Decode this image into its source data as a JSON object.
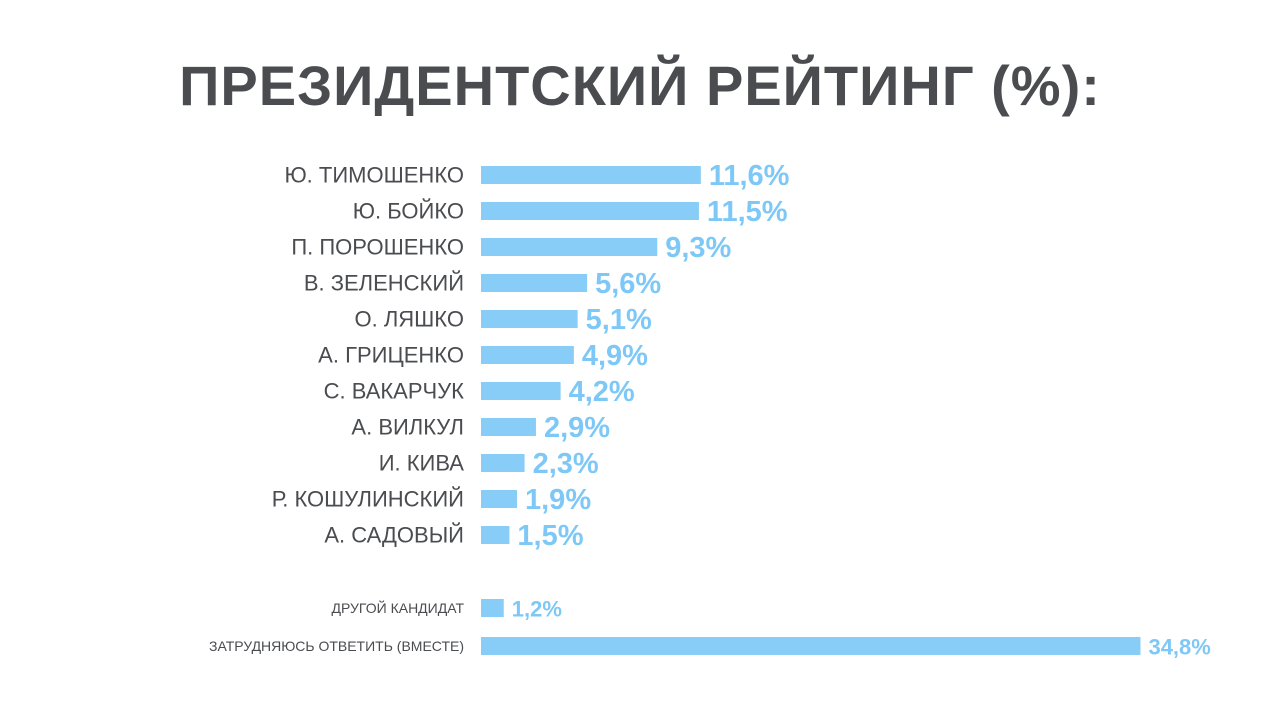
{
  "chart_data": {
    "type": "bar",
    "orientation": "horizontal",
    "title": "ПРЕЗИДЕНТСКИЙ РЕЙТИНГ (%):",
    "categories": [
      "Ю. ТИМОШЕНКО",
      "Ю. БОЙКО",
      "П. ПОРОШЕНКО",
      "В. ЗЕЛЕНСКИЙ",
      "О. ЛЯШКО",
      "А. ГРИЦЕНКО",
      "С. ВАКАРЧУК",
      "А. ВИЛКУЛ",
      "И. КИВА",
      "Р. КОШУЛИНСКИЙ",
      "А. САДОВЫЙ",
      "ДРУГОЙ КАНДИДАТ",
      "ЗАТРУДНЯЮСЬ ОТВЕТИТЬ (ВМЕСТЕ)"
    ],
    "values": [
      11.6,
      11.5,
      9.3,
      5.6,
      5.1,
      4.9,
      4.2,
      2.9,
      2.3,
      1.9,
      1.5,
      1.2,
      34.8
    ],
    "value_labels": [
      "11,6%",
      "11,5%",
      "9,3%",
      "5,6%",
      "5,1%",
      "4,9%",
      "4,2%",
      "2,9%",
      "2,3%",
      "1,9%",
      "1,5%",
      "1,2%",
      "34,8%"
    ],
    "xlabel": "",
    "ylabel": "",
    "grid": false,
    "colors": {
      "bar": "#87cdf8",
      "value_label": "#7ec8f7",
      "category_label": "#4a4c50",
      "title": "#4a4c50"
    }
  }
}
